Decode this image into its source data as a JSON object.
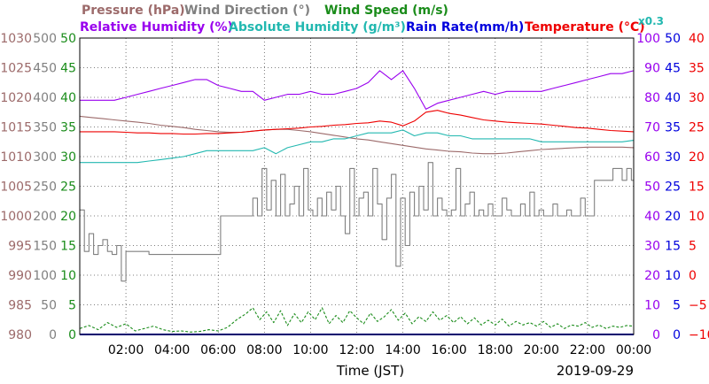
{
  "chart_data": {
    "type": "line",
    "legend": {
      "row1": [
        {
          "label": "Pressure (hPa)",
          "color": "#9c6a6a"
        },
        {
          "label": "Wind Direction (°)",
          "color": "#808080"
        },
        {
          "label": "Wind Speed (m/s)",
          "color": "#1a8c1a"
        }
      ],
      "row2": [
        {
          "label": "Relative Humidity (%)",
          "color": "#9900ee"
        },
        {
          "label": "Absolute Humidity (g/m³)",
          "color": "#22b8b0"
        },
        {
          "label": "Rain Rate(mm/h)",
          "color": "#0000dd"
        },
        {
          "label": "Temperature (°C)",
          "color": "#ee0000"
        }
      ],
      "scale_note": "x0.3"
    },
    "xlabel": "Time (JST)",
    "date": "2019-09-29",
    "x_range": [
      0,
      24
    ],
    "x_ticks": [
      "02:00",
      "04:00",
      "06:00",
      "08:00",
      "10:00",
      "12:00",
      "14:00",
      "16:00",
      "18:00",
      "20:00",
      "22:00",
      "00:00"
    ],
    "grid": true,
    "axes": {
      "pressure": {
        "color": "#9c6a6a",
        "range": [
          980,
          1030
        ],
        "ticks": [
          "980",
          "985",
          "990",
          "995",
          "1000",
          "1005",
          "1010",
          "1015",
          "1020",
          "1025",
          "1030"
        ]
      },
      "wind_direction": {
        "color": "#808080",
        "range": [
          0,
          500
        ],
        "ticks": [
          "0",
          "50",
          "100",
          "150",
          "200",
          "250",
          "300",
          "350",
          "400",
          "450",
          "500"
        ]
      },
      "wind_speed": {
        "color": "#1a8c1a",
        "range": [
          0,
          50
        ],
        "ticks": [
          "0",
          "5",
          "10",
          "15",
          "20",
          "25",
          "30",
          "35",
          "40",
          "45",
          "50"
        ]
      },
      "humidity": {
        "color": "#9900ee",
        "range": [
          0,
          100
        ],
        "ticks": [
          "0",
          "10",
          "20",
          "30",
          "40",
          "50",
          "60",
          "70",
          "80",
          "90",
          "100"
        ]
      },
      "rain_rate": {
        "color": "#0000dd",
        "range": [
          0,
          50
        ],
        "ticks": [
          "0",
          "5",
          "10",
          "15",
          "20",
          "25",
          "30",
          "35",
          "40",
          "45",
          "50"
        ]
      },
      "temperature": {
        "color": "#ee0000",
        "range": [
          -10,
          40
        ],
        "ticks": [
          "−10",
          "−5",
          "0",
          "5",
          "10",
          "15",
          "20",
          "25",
          "30",
          "35",
          "40"
        ]
      }
    },
    "series": [
      {
        "name": "Relative Humidity",
        "axis": "humidity",
        "color": "#9900ee",
        "x": [
          0,
          0.5,
          1,
          1.5,
          2,
          2.5,
          3,
          3.5,
          4,
          4.5,
          5,
          5.5,
          6,
          6.5,
          7,
          7.5,
          8,
          8.5,
          9,
          9.5,
          10,
          10.5,
          11,
          11.5,
          12,
          12.5,
          13,
          13.5,
          14,
          14.5,
          15,
          15.5,
          16,
          16.5,
          17,
          17.5,
          18,
          18.5,
          19,
          19.5,
          20,
          20.5,
          21,
          21.5,
          22,
          22.5,
          23,
          23.5,
          24
        ],
        "y": [
          79,
          79,
          79,
          79,
          80,
          81,
          82,
          83,
          84,
          85,
          86,
          86,
          84,
          83,
          82,
          82,
          79,
          80,
          81,
          81,
          82,
          81,
          81,
          82,
          83,
          85,
          89,
          86,
          89,
          83,
          76,
          78,
          79,
          80,
          81,
          82,
          81,
          82,
          82,
          82,
          82,
          83,
          84,
          85,
          86,
          87,
          88,
          88,
          89
        ]
      },
      {
        "name": "Temperature",
        "axis": "temperature",
        "color": "#ee0000",
        "x": [
          0,
          0.5,
          1,
          1.5,
          2,
          2.5,
          3,
          3.5,
          4,
          4.5,
          5,
          5.5,
          6,
          6.5,
          7,
          7.5,
          8,
          8.5,
          9,
          9.5,
          10,
          10.5,
          11,
          11.5,
          12,
          12.5,
          13,
          13.5,
          14,
          14.5,
          15,
          15.5,
          16,
          16.5,
          17,
          17.5,
          18,
          18.5,
          19,
          19.5,
          20,
          20.5,
          21,
          21.5,
          22,
          22.5,
          23,
          23.5,
          24
        ],
        "y": [
          24.2,
          24.2,
          24.2,
          24.2,
          24.1,
          24,
          24,
          23.9,
          23.9,
          23.8,
          23.8,
          23.9,
          23.9,
          24,
          24.1,
          24.3,
          24.5,
          24.6,
          24.7,
          24.8,
          25,
          25.1,
          25.3,
          25.4,
          25.6,
          25.7,
          26,
          25.8,
          25.2,
          26,
          27.5,
          27.8,
          27.3,
          27,
          26.6,
          26.2,
          26,
          25.8,
          25.7,
          25.6,
          25.5,
          25.3,
          25.1,
          24.9,
          24.8,
          24.6,
          24.4,
          24.3,
          24.2
        ]
      },
      {
        "name": "Absolute Humidity",
        "axis": "humidity",
        "color": "#22b8b0",
        "x": [
          0,
          0.5,
          1,
          1.5,
          2,
          2.5,
          3,
          3.5,
          4,
          4.5,
          5,
          5.5,
          6,
          6.5,
          7,
          7.5,
          8,
          8.5,
          9,
          9.5,
          10,
          10.5,
          11,
          11.5,
          12,
          12.5,
          13,
          13.5,
          14,
          14.5,
          15,
          15.5,
          16,
          16.5,
          17,
          17.5,
          18,
          18.5,
          19,
          19.5,
          20,
          20.5,
          21,
          21.5,
          22,
          22.5,
          23,
          23.5,
          24
        ],
        "y": [
          58,
          58,
          58,
          58,
          58,
          58,
          58.5,
          59,
          59.5,
          60,
          61,
          62,
          62,
          62,
          62,
          62,
          63,
          61,
          63,
          64,
          65,
          65,
          66,
          66,
          67,
          68,
          68,
          68,
          69,
          67,
          68,
          68,
          67,
          67,
          66,
          66,
          66,
          66,
          66,
          66,
          65,
          65,
          65,
          65,
          65,
          65,
          65,
          65,
          65.5
        ]
      },
      {
        "name": "Pressure",
        "axis": "pressure",
        "color": "#9c6a6a",
        "x": [
          0,
          0.5,
          1,
          1.5,
          2,
          2.5,
          3,
          3.5,
          4,
          4.5,
          5,
          5.5,
          6,
          6.5,
          7,
          7.5,
          8,
          8.5,
          9,
          9.5,
          10,
          10.5,
          11,
          11.5,
          12,
          12.5,
          13,
          13.5,
          14,
          14.5,
          15,
          15.5,
          16,
          16.5,
          17,
          17.5,
          18,
          18.5,
          19,
          19.5,
          20,
          20.5,
          21,
          21.5,
          22,
          22.5,
          23,
          23.5,
          24
        ],
        "y": [
          1016.8,
          1016.6,
          1016.4,
          1016.2,
          1016.0,
          1015.8,
          1015.6,
          1015.3,
          1015.1,
          1014.9,
          1014.6,
          1014.4,
          1014.2,
          1014.1,
          1014.1,
          1014.3,
          1014.5,
          1014.6,
          1014.6,
          1014.4,
          1014.2,
          1013.9,
          1013.6,
          1013.3,
          1013,
          1012.8,
          1012.5,
          1012.2,
          1011.9,
          1011.6,
          1011.3,
          1011.1,
          1010.9,
          1010.8,
          1010.6,
          1010.5,
          1010.5,
          1010.6,
          1010.8,
          1011.0,
          1011.2,
          1011.3,
          1011.4,
          1011.5,
          1011.6,
          1011.6,
          1011.6,
          1011.6,
          1011.5
        ]
      },
      {
        "name": "Wind Direction",
        "axis": "wind_direction",
        "color": "#808080",
        "x": [
          0,
          0.2,
          0.4,
          0.6,
          0.8,
          1,
          1.2,
          1.4,
          1.6,
          1.8,
          2,
          2.5,
          3,
          3.5,
          4,
          4.5,
          5,
          5.5,
          6,
          6.1,
          6.3,
          6.6,
          7,
          7.3,
          7.5,
          7.7,
          7.9,
          8.1,
          8.3,
          8.5,
          8.7,
          8.9,
          9.1,
          9.3,
          9.5,
          9.7,
          9.9,
          10.1,
          10.3,
          10.5,
          10.7,
          10.9,
          11.1,
          11.3,
          11.5,
          11.7,
          11.9,
          12.1,
          12.3,
          12.5,
          12.7,
          12.9,
          13.1,
          13.3,
          13.5,
          13.7,
          13.9,
          14.1,
          14.3,
          14.5,
          14.7,
          14.9,
          15.1,
          15.3,
          15.5,
          15.7,
          15.9,
          16.1,
          16.3,
          16.5,
          16.7,
          16.9,
          17.1,
          17.3,
          17.5,
          17.7,
          17.9,
          18.1,
          18.3,
          18.5,
          18.7,
          18.9,
          19.1,
          19.3,
          19.5,
          19.7,
          19.9,
          20.1,
          20.3,
          20.5,
          20.7,
          20.9,
          21.1,
          21.3,
          21.5,
          21.7,
          21.9,
          22.1,
          22.3,
          22.5,
          22.7,
          22.9,
          23.1,
          23.3,
          23.5,
          23.7,
          23.9,
          24
        ],
        "y": [
          210,
          140,
          170,
          135,
          150,
          160,
          140,
          135,
          150,
          90,
          140,
          140,
          135,
          135,
          135,
          135,
          135,
          135,
          135,
          200,
          200,
          200,
          200,
          200,
          230,
          200,
          280,
          210,
          260,
          200,
          270,
          200,
          220,
          250,
          200,
          280,
          210,
          200,
          230,
          200,
          240,
          210,
          250,
          200,
          170,
          280,
          200,
          230,
          240,
          200,
          280,
          220,
          160,
          230,
          270,
          115,
          230,
          150,
          240,
          200,
          250,
          210,
          290,
          200,
          230,
          210,
          200,
          210,
          280,
          200,
          220,
          240,
          200,
          210,
          200,
          220,
          200,
          200,
          230,
          210,
          200,
          200,
          220,
          200,
          240,
          200,
          210,
          200,
          200,
          220,
          200,
          200,
          210,
          200,
          200,
          230,
          200,
          200,
          260,
          260,
          260,
          260,
          280,
          280,
          260,
          280,
          260,
          260
        ]
      },
      {
        "name": "Wind Speed",
        "axis": "wind_speed",
        "color": "#1a8c1a",
        "x": [
          0,
          0.4,
          0.8,
          1.2,
          1.6,
          2,
          2.4,
          2.8,
          3.2,
          3.6,
          4,
          4.4,
          4.8,
          5.2,
          5.6,
          6,
          6.4,
          6.8,
          7.2,
          7.5,
          7.8,
          8.1,
          8.4,
          8.7,
          9,
          9.3,
          9.6,
          9.9,
          10.2,
          10.5,
          10.8,
          11.1,
          11.4,
          11.7,
          12,
          12.3,
          12.6,
          12.9,
          13.2,
          13.5,
          13.8,
          14.1,
          14.4,
          14.7,
          15,
          15.3,
          15.6,
          15.9,
          16.2,
          16.5,
          16.8,
          17.1,
          17.4,
          17.7,
          18,
          18.3,
          18.6,
          18.9,
          19.2,
          19.5,
          19.8,
          20.1,
          20.4,
          20.7,
          21,
          21.3,
          21.6,
          21.9,
          22.2,
          22.5,
          22.8,
          23.1,
          23.4,
          23.7,
          24
        ],
        "y": [
          1,
          1.5,
          0.8,
          2,
          1.2,
          1.8,
          0.6,
          1,
          1.4,
          0.8,
          0.5,
          0.6,
          0.4,
          0.5,
          0.8,
          0.6,
          1.2,
          2.5,
          3.5,
          4.5,
          2.5,
          3.8,
          2,
          4,
          1.5,
          3.5,
          2,
          3.8,
          2.5,
          4.5,
          1.8,
          3.2,
          2,
          4,
          2.8,
          1.8,
          3.6,
          2.2,
          3,
          4.2,
          2.4,
          3.6,
          1.8,
          3,
          2.2,
          3.8,
          2.4,
          3.2,
          2,
          3,
          1.8,
          2.8,
          1.6,
          2.4,
          1.6,
          2.6,
          1.4,
          2.2,
          1.6,
          2,
          1.4,
          2.2,
          1.2,
          1.8,
          1,
          1.6,
          1.4,
          2,
          1.2,
          1.6,
          1,
          1.4,
          1.2,
          1.5,
          1.4
        ]
      },
      {
        "name": "Rain Rate",
        "axis": "rain_rate",
        "color": "#0000dd",
        "x": [
          0,
          24
        ],
        "y": [
          0,
          0
        ]
      }
    ]
  }
}
